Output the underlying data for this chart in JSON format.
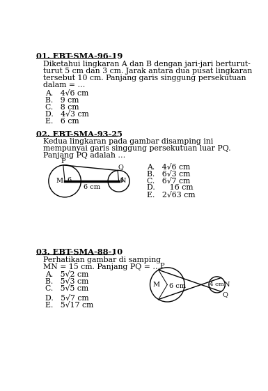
{
  "bg_color": "#ffffff",
  "text_color": "#000000",
  "title1": "01. EBT-SMA-96-19",
  "body1_lines": [
    "Diketahui lingkaran A dan B dengan jari-jari berturut-",
    "turut 5 cm dan 3 cm. Jarak antara dua pusat lingkaran",
    "tersebut 10 cm. Panjang garis singgung persekutuan",
    "dalam = …"
  ],
  "options1": [
    "A.   4√6 cm",
    "B.   9 cm",
    "C.   8 cm",
    "D.   4√3 cm",
    "E.   6 cm"
  ],
  "title2": "02. EBT-SMA-93-25",
  "body2_lines": [
    "Kedua lingkaran pada gambar disamping ini",
    "mempunyai garis singgung persekutuan luar PQ.",
    "Panjang PQ adalah …"
  ],
  "options2": [
    "A.   4√6 cm",
    "B.   6√3 cm",
    "C.   6√7 cm",
    "D.      16 cm",
    "E.   2√63 cm"
  ],
  "title3": "03. EBT-SMA-88-10",
  "body3_lines": [
    "Perhatikan gambar di samping",
    "MN = 15 cm. Panjang PQ = …"
  ],
  "options3": [
    "A.   5√2 cm",
    "B.   5√3 cm",
    "C.   5√5 cm",
    "D.   5√7 cm",
    "E.   5√17 cm"
  ],
  "figsize": [
    3.85,
    5.61
  ],
  "dpi": 100
}
